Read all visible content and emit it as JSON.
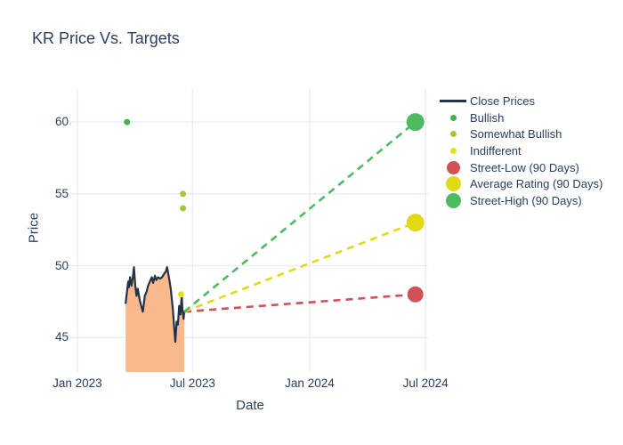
{
  "chart_data": {
    "type": "line",
    "title": "KR Price Vs. Targets",
    "xlabel": "Date",
    "ylabel": "Price",
    "x_axis": {
      "tick_labels": [
        "Jan 2023",
        "Jul 2023",
        "Jan 2024",
        "Jul 2024"
      ],
      "tick_days": [
        0,
        181,
        365,
        547
      ],
      "range_days": [
        -11,
        551
      ]
    },
    "y_axis": {
      "tick_values": [
        45,
        50,
        55,
        60
      ],
      "range": [
        42.6,
        62.3
      ]
    },
    "grid": true,
    "legend_position": "top-right",
    "close_prices": {
      "name": "Close Prices",
      "color": "#233247",
      "fill_color": "#f9b98b",
      "points": [
        [
          76,
          47.4
        ],
        [
          78,
          48.2
        ],
        [
          80,
          48.9
        ],
        [
          81,
          48.5
        ],
        [
          83,
          49.2
        ],
        [
          85,
          48.6
        ],
        [
          87,
          49.1
        ],
        [
          89,
          49.9
        ],
        [
          91,
          48.6
        ],
        [
          93,
          47.9
        ],
        [
          95,
          48.4
        ],
        [
          98,
          47.6
        ],
        [
          101,
          47.1
        ],
        [
          103,
          46.8
        ],
        [
          106,
          47.9
        ],
        [
          109,
          48.2
        ],
        [
          111,
          48.6
        ],
        [
          114,
          48.9
        ],
        [
          117,
          49.2
        ],
        [
          119,
          48.8
        ],
        [
          122,
          49.3
        ],
        [
          124,
          49.0
        ],
        [
          127,
          49.2
        ],
        [
          130,
          49.1
        ],
        [
          133,
          49.2
        ],
        [
          136,
          49.4
        ],
        [
          139,
          49.6
        ],
        [
          141,
          49.9
        ],
        [
          143,
          49.4
        ],
        [
          145,
          48.9
        ],
        [
          147,
          48.3
        ],
        [
          150,
          47.0
        ],
        [
          152,
          45.8
        ],
        [
          154,
          44.7
        ],
        [
          156,
          46.1
        ],
        [
          158,
          45.9
        ],
        [
          160,
          47.2
        ],
        [
          162,
          46.6
        ],
        [
          164,
          48.0
        ],
        [
          165,
          47.0
        ],
        [
          167,
          46.3
        ],
        [
          168,
          46.8
        ]
      ]
    },
    "ratings": [
      {
        "name": "Bullish",
        "color": "#47b14d",
        "size": 7,
        "points": [
          [
            78,
            60
          ]
        ]
      },
      {
        "name": "Somewhat Bullish",
        "color": "#a2c83b",
        "size": 7,
        "points": [
          [
            166,
            55
          ],
          [
            166,
            54
          ]
        ]
      },
      {
        "name": "Indifferent",
        "color": "#e6e01a",
        "size": 7,
        "points": [
          [
            163,
            48
          ]
        ]
      }
    ],
    "targets": [
      {
        "name": "Street-Low (90 Days)",
        "color": "#d25058",
        "start": [
          168,
          46.8
        ],
        "end": [
          531,
          48
        ],
        "end_marker_size": 18
      },
      {
        "name": "Average Rating (90 Days)",
        "color": "#e0da15",
        "start": [
          168,
          46.8
        ],
        "end": [
          531,
          53
        ],
        "end_marker_size": 20
      },
      {
        "name": "Street-High (90 Days)",
        "color": "#4dba62",
        "start": [
          168,
          46.8
        ],
        "end": [
          531,
          60
        ],
        "end_marker_size": 20
      }
    ],
    "legend": [
      {
        "label": "Close Prices",
        "swatch": "line",
        "color": "#233247",
        "size": 30
      },
      {
        "label": "Bullish",
        "swatch": "dot",
        "color": "#47b14d",
        "size": 7
      },
      {
        "label": "Somewhat Bullish",
        "swatch": "dot",
        "color": "#a2c83b",
        "size": 7
      },
      {
        "label": "Indifferent",
        "swatch": "dot",
        "color": "#e6e01a",
        "size": 7
      },
      {
        "label": "Street-Low (90 Days)",
        "swatch": "dot",
        "color": "#d25058",
        "size": 15
      },
      {
        "label": "Average Rating (90 Days)",
        "swatch": "dot",
        "color": "#e0da15",
        "size": 17
      },
      {
        "label": "Street-High (90 Days)",
        "swatch": "dot",
        "color": "#4dba62",
        "size": 17
      }
    ],
    "colors": {
      "text": "#2a3f5f",
      "grid": "#e5ecf6",
      "background": "#ffffff"
    }
  }
}
